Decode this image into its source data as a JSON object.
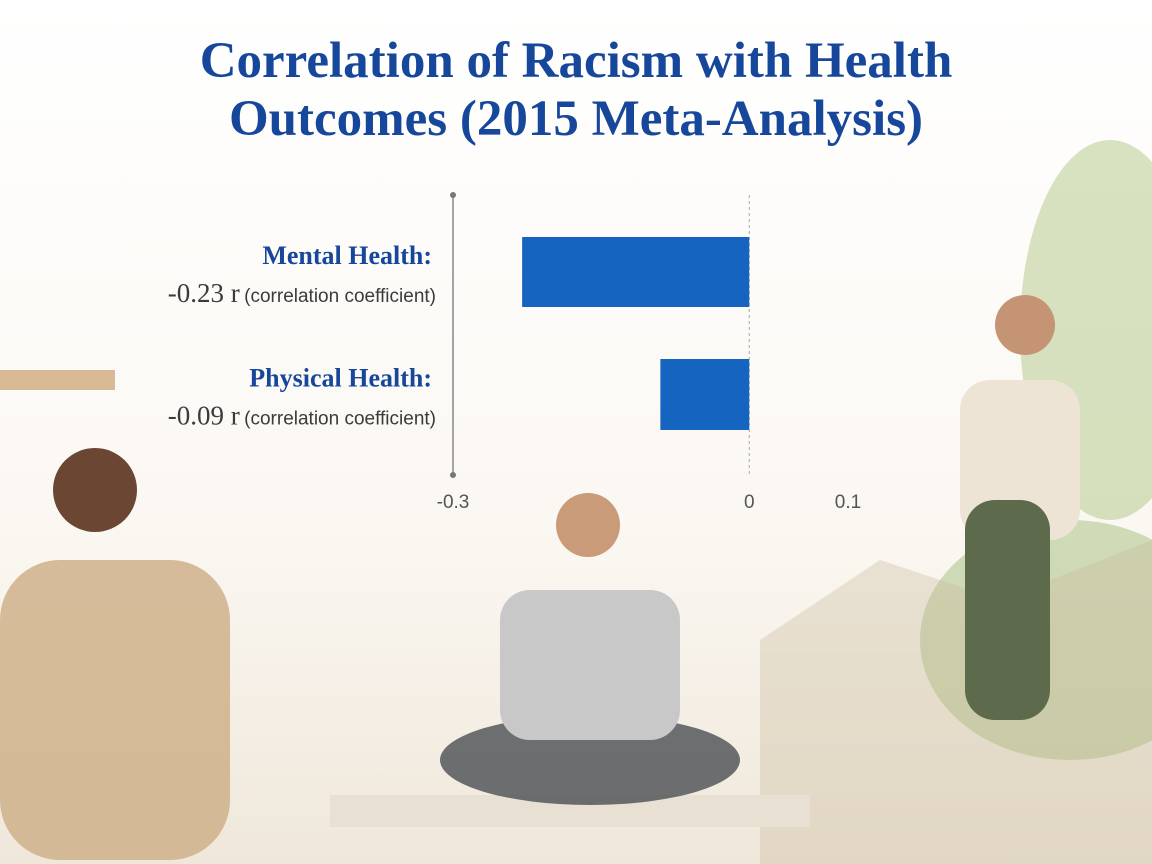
{
  "chart_data": {
    "type": "hbar",
    "title": "Correlation of Racism with Health Outcomes (2015 Meta-Analysis)",
    "categories": [
      "Mental Health:",
      "Physical Health:"
    ],
    "values": [
      -0.23,
      -0.09
    ],
    "value_labels": [
      "-0.23 r",
      "-0.09 r"
    ],
    "unit_note": "(correlation coefficient)",
    "color": "#1565c0",
    "xlim": [
      -0.3,
      0.1
    ],
    "xticks": [
      -0.3,
      0,
      0.1
    ]
  }
}
